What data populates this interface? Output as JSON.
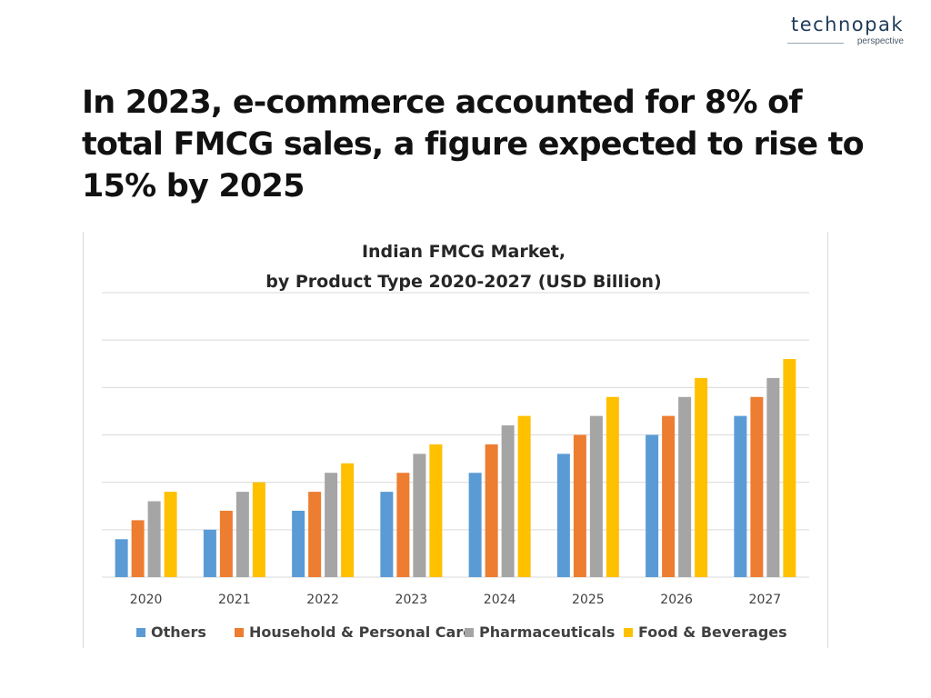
{
  "brand": {
    "name": "technopak",
    "tagline": "perspective"
  },
  "headline": "In 2023, e-commerce accounted for 8% of total FMCG sales, a figure expected to rise to 15% by 2025",
  "colors": {
    "Others": "#5b9bd5",
    "Household & Personal Care": "#ed7d31",
    "Pharmaceuticals": "#a5a5a5",
    "Food & Beverages": "#ffc000"
  },
  "chart_data": {
    "type": "bar",
    "title": "Indian FMCG Market,",
    "subtitle": "by Product Type 2020-2027 (USD Billion)",
    "categories": [
      "2020",
      "2021",
      "2022",
      "2023",
      "2024",
      "2025",
      "2026",
      "2027"
    ],
    "series": [
      {
        "name": "Others",
        "values": [
          2.0,
          2.5,
          3.5,
          4.5,
          5.5,
          6.5,
          7.5,
          8.5
        ]
      },
      {
        "name": "Household & Personal Care",
        "values": [
          3.0,
          3.5,
          4.5,
          5.5,
          7.0,
          7.5,
          8.5,
          9.5
        ]
      },
      {
        "name": "Pharmaceuticals",
        "values": [
          4.0,
          4.5,
          5.5,
          6.5,
          8.0,
          8.5,
          9.5,
          10.5
        ]
      },
      {
        "name": "Food & Beverages",
        "values": [
          4.5,
          5.0,
          6.0,
          7.0,
          8.5,
          9.5,
          10.5,
          11.5
        ]
      }
    ],
    "ylim": [
      0,
      15
    ],
    "grid": true,
    "y_tick_labels_shown": false,
    "legend": "bottom"
  }
}
